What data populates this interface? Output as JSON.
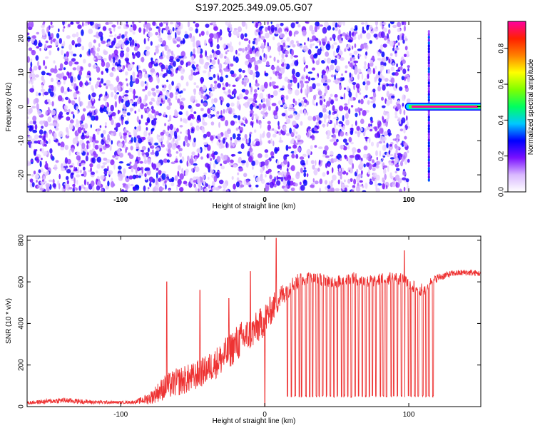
{
  "title": "S197.2025.349.09.05.G07",
  "chart_data": [
    {
      "type": "heatmap",
      "xlabel": "Height of straight line (km)",
      "ylabel": "Frequency (Hz)",
      "xlim": [
        -165,
        150
      ],
      "ylim": [
        -25,
        25
      ],
      "xticks": [
        -100,
        0,
        100
      ],
      "yticks": [
        -20,
        -10,
        0,
        10,
        20
      ],
      "colorbar": {
        "label": "Normalized spectral amplitude",
        "range": [
          0,
          0.95
        ],
        "ticks": [
          0.0,
          0.2,
          0.4,
          0.6,
          0.8
        ]
      },
      "noise_region": {
        "x": [
          -165,
          100
        ],
        "amplitude_range": [
          0.05,
          0.3
        ]
      },
      "signal_line": {
        "x": [
          100,
          150
        ],
        "frequency": 0,
        "amplitude": 0.95
      },
      "vertical_streaks": [
        {
          "x": 114,
          "frequency_range": [
            -22,
            22
          ]
        }
      ]
    },
    {
      "type": "line",
      "xlabel": "Height of straight line (km)",
      "ylabel": "SNR (10 * v/v)",
      "xlim": [
        -165,
        150
      ],
      "ylim": [
        0,
        820
      ],
      "xticks": [
        -100,
        0,
        100
      ],
      "yticks": [
        0,
        200,
        400,
        600,
        800
      ],
      "color": "#ee3333",
      "envelope": {
        "x": [
          -165,
          -140,
          -120,
          -100,
          -90,
          -80,
          -70,
          -60,
          -50,
          -40,
          -30,
          -20,
          -15,
          -10,
          -5,
          0,
          5,
          10,
          15,
          20,
          25,
          30,
          40,
          50,
          60,
          70,
          80,
          90,
          95,
          100,
          105,
          110,
          112,
          115,
          120,
          130,
          140,
          150
        ],
        "base": [
          18,
          30,
          22,
          20,
          22,
          40,
          90,
          120,
          140,
          180,
          230,
          300,
          330,
          350,
          380,
          420,
          470,
          520,
          560,
          590,
          610,
          620,
          610,
          600,
          620,
          600,
          610,
          620,
          610,
          590,
          570,
          560,
          570,
          600,
          620,
          640,
          645,
          640
        ],
        "amp": [
          8,
          14,
          10,
          6,
          8,
          30,
          60,
          70,
          70,
          70,
          80,
          90,
          90,
          80,
          80,
          80,
          70,
          60,
          50,
          40,
          35,
          30,
          30,
          30,
          30,
          30,
          30,
          30,
          30,
          30,
          30,
          30,
          30,
          20,
          20,
          15,
          15,
          15
        ]
      },
      "spikes": [
        {
          "x": -68,
          "y": 600
        },
        {
          "x": -45,
          "y": 560
        },
        {
          "x": -25,
          "y": 520
        },
        {
          "x": -10,
          "y": 650
        },
        {
          "x": 8,
          "y": 810
        },
        {
          "x": 0,
          "y": 0
        },
        {
          "x": 97,
          "y": 750
        }
      ],
      "dropouts": {
        "x_range": [
          15,
          118
        ],
        "low": 45,
        "count": 42
      }
    }
  ]
}
